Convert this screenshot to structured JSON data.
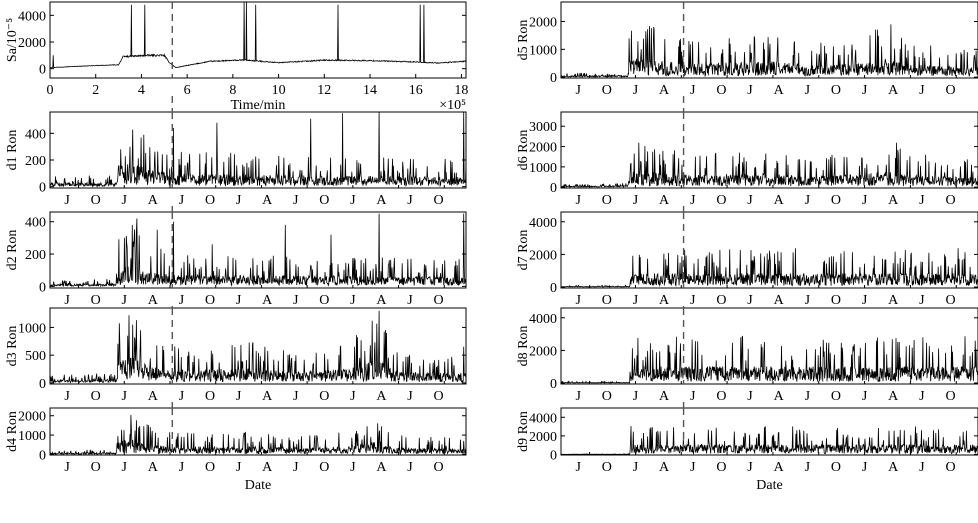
{
  "chart_data": [
    {
      "id": "sa",
      "type": "line",
      "ylabel": "Sa/10⁻⁵",
      "xlabel": "Time/min",
      "x_exponent": "×10⁵",
      "xlim": [
        0,
        18.2
      ],
      "ylim": [
        -700,
        5000
      ],
      "x_ticks": [
        0,
        2,
        4,
        6,
        8,
        10,
        12,
        14,
        16,
        18
      ],
      "x_tick_labels": [
        "0",
        "2",
        "4",
        "6",
        "8",
        "10",
        "12",
        "14",
        "16",
        "18"
      ],
      "y_ticks": [
        0,
        2000,
        4000
      ],
      "y_tick_labels": [
        "0",
        "2000",
        "4000"
      ],
      "marker_x": 5.35,
      "levels": [
        [
          0,
          80
        ],
        [
          1.5,
          200
        ],
        [
          3.0,
          290
        ],
        [
          3.2,
          900
        ],
        [
          4.4,
          1000
        ],
        [
          5.0,
          1000
        ],
        [
          5.2,
          500
        ],
        [
          5.5,
          80
        ],
        [
          7,
          550
        ],
        [
          8.5,
          650
        ],
        [
          10,
          450
        ],
        [
          12,
          640
        ],
        [
          14,
          600
        ],
        [
          16,
          500
        ],
        [
          17,
          420
        ],
        [
          18.2,
          560
        ]
      ],
      "spikes": [
        [
          0.15,
          1000
        ],
        [
          3.55,
          4800
        ],
        [
          4.15,
          4800
        ],
        [
          8.5,
          5000
        ],
        [
          8.6,
          5000
        ],
        [
          9.0,
          4800
        ],
        [
          12.6,
          4800
        ],
        [
          16.2,
          4800
        ],
        [
          16.35,
          4800
        ]
      ]
    },
    {
      "id": "d1",
      "type": "line",
      "ylabel": "d1 Ron",
      "ylim": [
        -10,
        560
      ],
      "y_ticks": [
        0,
        200,
        400
      ],
      "y_tick_labels": [
        "0",
        "200",
        "400"
      ],
      "month_ticks": [
        "J",
        "O",
        "J",
        "A",
        "J",
        "O",
        "J",
        "A",
        "J",
        "O",
        "J",
        "A",
        "J",
        "O"
      ],
      "marker_x": 5.35,
      "base_levels": [
        [
          0,
          25
        ],
        [
          2.9,
          25
        ],
        [
          3.0,
          140
        ],
        [
          3.6,
          140
        ],
        [
          4.4,
          110
        ],
        [
          5.3,
          80
        ],
        [
          18.2,
          60
        ]
      ],
      "spikes": [
        [
          3.5,
          300
        ],
        [
          4.1,
          390
        ],
        [
          5.4,
          440
        ],
        [
          7.3,
          480
        ],
        [
          11.4,
          510
        ],
        [
          12.8,
          550
        ],
        [
          14.4,
          560
        ],
        [
          18.1,
          560
        ]
      ]
    },
    {
      "id": "d2",
      "type": "line",
      "ylabel": "d2 Ron",
      "ylim": [
        -10,
        460
      ],
      "y_ticks": [
        0,
        200,
        400
      ],
      "y_tick_labels": [
        "0",
        "200",
        "400"
      ],
      "month_ticks": [
        "J",
        "O",
        "J",
        "A",
        "J",
        "O",
        "J",
        "A",
        "J",
        "O",
        "J",
        "A",
        "J",
        "O"
      ],
      "marker_x": 5.35,
      "base_levels": [
        [
          0,
          10
        ],
        [
          2.9,
          15
        ],
        [
          3.0,
          90
        ],
        [
          3.6,
          110
        ],
        [
          4.4,
          80
        ],
        [
          5.3,
          60
        ],
        [
          18.2,
          50
        ]
      ],
      "spikes": [
        [
          3.6,
          380
        ],
        [
          3.8,
          420
        ],
        [
          4.7,
          350
        ],
        [
          5.4,
          400
        ],
        [
          7.1,
          260
        ],
        [
          10.3,
          380
        ],
        [
          12.3,
          320
        ],
        [
          14.4,
          450
        ],
        [
          18.1,
          450
        ]
      ]
    },
    {
      "id": "d3",
      "type": "line",
      "ylabel": "d3 Ron",
      "ylim": [
        -20,
        1350
      ],
      "y_ticks": [
        0,
        500,
        1000
      ],
      "y_tick_labels": [
        "0",
        "500",
        "1000"
      ],
      "month_ticks": [
        "J",
        "O",
        "J",
        "A",
        "J",
        "O",
        "J",
        "A",
        "J",
        "O",
        "J",
        "A",
        "J",
        "O"
      ],
      "marker_x": 5.35,
      "base_levels": [
        [
          0,
          40
        ],
        [
          2.9,
          60
        ],
        [
          3.0,
          320
        ],
        [
          3.6,
          400
        ],
        [
          4.4,
          240
        ],
        [
          5.3,
          200
        ],
        [
          9,
          220
        ],
        [
          11,
          170
        ],
        [
          13,
          210
        ],
        [
          14.4,
          380
        ],
        [
          15,
          190
        ],
        [
          18.2,
          150
        ]
      ],
      "spikes": [
        [
          3.4,
          850
        ],
        [
          3.7,
          820
        ],
        [
          9.4,
          650
        ],
        [
          14.4,
          1300
        ],
        [
          18.1,
          650
        ]
      ]
    },
    {
      "id": "d4",
      "type": "line",
      "ylabel": "d4 Ron",
      "ylim": [
        -30,
        2400
      ],
      "y_ticks": [
        0,
        1000,
        2000
      ],
      "y_tick_labels": [
        "0",
        "1000",
        "2000"
      ],
      "month_ticks": [
        "J",
        "O",
        "J",
        "A",
        "J",
        "O",
        "J",
        "A",
        "J",
        "O",
        "J",
        "A",
        "J",
        "O"
      ],
      "xlabel": "Date",
      "marker_x": 5.35,
      "base_levels": [
        [
          0,
          60
        ],
        [
          2.9,
          80
        ],
        [
          3.0,
          600
        ],
        [
          3.6,
          650
        ],
        [
          4.4,
          430
        ],
        [
          5.3,
          330
        ],
        [
          9,
          360
        ],
        [
          11,
          300
        ],
        [
          13,
          340
        ],
        [
          14.4,
          600
        ],
        [
          15,
          300
        ],
        [
          18.2,
          250
        ]
      ],
      "spikes": [
        [
          3.5,
          1050
        ],
        [
          14.4,
          1100
        ],
        [
          18.1,
          700
        ]
      ]
    },
    {
      "id": "d5",
      "type": "line",
      "ylabel": "d5 Ron",
      "ylim": [
        -30,
        2700
      ],
      "y_ticks": [
        0,
        1000,
        2000
      ],
      "y_tick_labels": [
        "0",
        "1000",
        "2000"
      ],
      "month_ticks": [
        "J",
        "O",
        "J",
        "A",
        "J",
        "O",
        "J",
        "A",
        "J",
        "O",
        "J",
        "A",
        "J",
        "O"
      ],
      "marker_x": 5.35,
      "base_levels": [
        [
          0,
          40
        ],
        [
          2.9,
          60
        ],
        [
          3.0,
          600
        ],
        [
          3.6,
          650
        ],
        [
          4.4,
          500
        ],
        [
          5.3,
          400
        ],
        [
          9,
          480
        ],
        [
          11,
          360
        ],
        [
          13,
          420
        ],
        [
          14.4,
          600
        ],
        [
          15,
          400
        ],
        [
          18.2,
          280
        ]
      ],
      "spikes": [
        [
          3.5,
          1000
        ],
        [
          8.0,
          900
        ],
        [
          14.0,
          1100
        ]
      ]
    },
    {
      "id": "d6",
      "type": "line",
      "ylabel": "d6 Ron",
      "ylim": [
        -40,
        3700
      ],
      "y_ticks": [
        0,
        1000,
        2000,
        3000
      ],
      "y_tick_labels": [
        "0",
        "1000",
        "2000",
        "3000"
      ],
      "month_ticks": [
        "J",
        "O",
        "J",
        "A",
        "J",
        "O",
        "J",
        "A",
        "J",
        "O",
        "J",
        "A",
        "J",
        "O"
      ],
      "marker_x": 5.35,
      "base_levels": [
        [
          0,
          40
        ],
        [
          2.9,
          60
        ],
        [
          3.0,
          620
        ],
        [
          3.6,
          700
        ],
        [
          4.4,
          560
        ],
        [
          5.3,
          520
        ],
        [
          9,
          560
        ],
        [
          11,
          450
        ],
        [
          13,
          520
        ],
        [
          14.4,
          750
        ],
        [
          15,
          500
        ],
        [
          18.2,
          400
        ]
      ],
      "spikes": [
        [
          3.5,
          1200
        ],
        [
          8.5,
          1000
        ],
        [
          14.2,
          1100
        ]
      ]
    },
    {
      "id": "d7",
      "type": "line",
      "ylabel": "d7 Ron",
      "ylim": [
        -60,
        4600
      ],
      "y_ticks": [
        0,
        2000,
        4000
      ],
      "y_tick_labels": [
        "0",
        "2000",
        "4000"
      ],
      "month_ticks": [
        "J",
        "O",
        "J",
        "A",
        "J",
        "O",
        "J",
        "A",
        "J",
        "O",
        "J",
        "A",
        "J",
        "O"
      ],
      "marker_x": 5.35,
      "base_levels": [
        [
          0,
          30
        ],
        [
          3.0,
          30
        ],
        [
          3.05,
          700
        ],
        [
          18.2,
          700
        ]
      ],
      "spikes": []
    },
    {
      "id": "d8",
      "type": "line",
      "ylabel": "d8 Ron",
      "ylim": [
        -60,
        4600
      ],
      "y_ticks": [
        0,
        2000,
        4000
      ],
      "y_tick_labels": [
        "0",
        "2000",
        "4000"
      ],
      "month_ticks": [
        "J",
        "O",
        "J",
        "A",
        "J",
        "O",
        "J",
        "A",
        "J",
        "O",
        "J",
        "A",
        "J",
        "O"
      ],
      "marker_x": 5.35,
      "base_levels": [
        [
          0,
          30
        ],
        [
          3.0,
          30
        ],
        [
          3.05,
          850
        ],
        [
          18.2,
          850
        ]
      ],
      "spikes": []
    },
    {
      "id": "d9",
      "type": "line",
      "ylabel": "d9 Ron",
      "ylim": [
        -60,
        5000
      ],
      "y_ticks": [
        0,
        2000,
        4000
      ],
      "y_tick_labels": [
        "0",
        "2000",
        "4000"
      ],
      "month_ticks": [
        "J",
        "O",
        "J",
        "A",
        "J",
        "O",
        "J",
        "A",
        "J",
        "O",
        "J",
        "A",
        "J",
        "O"
      ],
      "xlabel": "Date",
      "marker_x": 5.35,
      "base_levels": [
        [
          0,
          20
        ],
        [
          3.0,
          20
        ],
        [
          3.05,
          900
        ],
        [
          18.2,
          900
        ]
      ],
      "spikes": []
    }
  ]
}
